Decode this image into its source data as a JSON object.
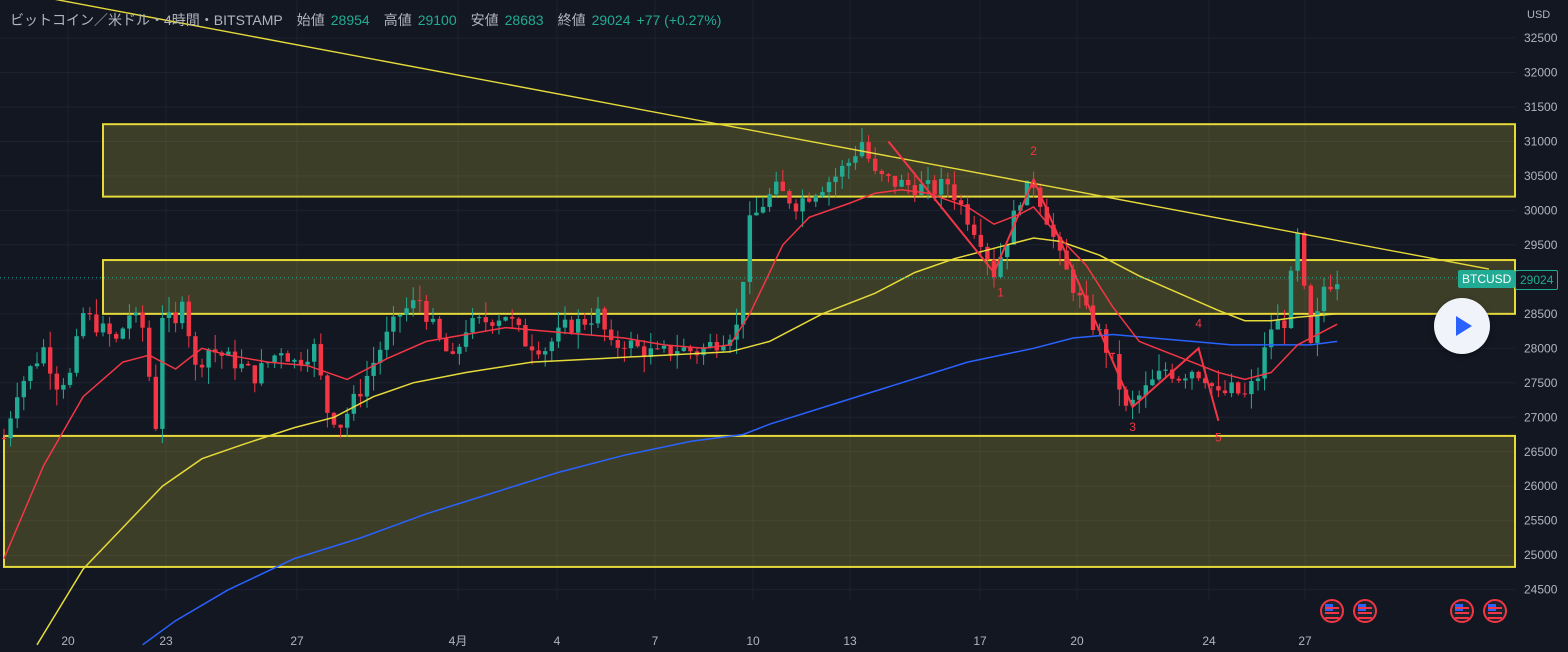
{
  "header": {
    "symbol": "ビットコイン／米ドル・4時間・BITSTAMP",
    "open_label": "始値",
    "open": "28954",
    "high_label": "高値",
    "high": "29100",
    "low_label": "安値",
    "low": "28683",
    "close_label": "終値",
    "close": "29024",
    "change": "+77 (+0.27%)"
  },
  "price_axis": {
    "currency": "USD",
    "ticks": [
      "32500",
      "32000",
      "31500",
      "31000",
      "30500",
      "30000",
      "29500",
      "29000",
      "28500",
      "28000",
      "27500",
      "27000",
      "26500",
      "26000",
      "25500",
      "25000",
      "24500"
    ]
  },
  "time_axis": {
    "ticks": [
      "20",
      "23",
      "27",
      "4月",
      "4",
      "7",
      "10",
      "13",
      "17",
      "20",
      "24",
      "27"
    ]
  },
  "last_price": {
    "symbol": "BTCUSD",
    "value": "29024"
  },
  "colors": {
    "up": "#22ab94",
    "down": "#f23645",
    "zone": "#e6da3a",
    "ma_fast": "#f23645",
    "ma_mid": "#e6da3a",
    "ma_slow": "#2962ff",
    "trend": "#e6da3a"
  },
  "chart_data": {
    "type": "candlestick",
    "title": "ビットコイン／米ドル・4時間・BITSTAMP",
    "ylim": [
      24200,
      32800
    ],
    "x_ticks": [
      "20",
      "23",
      "27",
      "4月",
      "4",
      "7",
      "10",
      "13",
      "17",
      "20",
      "24",
      "27"
    ],
    "price_ticks": [
      32500,
      32000,
      31500,
      31000,
      30500,
      30000,
      29500,
      29000,
      28500,
      28000,
      27500,
      27000,
      26500,
      26000,
      25500,
      25000,
      24500
    ],
    "last_price": 29024,
    "close_path_anchors": [
      [
        0,
        26700
      ],
      [
        2,
        27400
      ],
      [
        6,
        28000
      ],
      [
        8,
        27500
      ],
      [
        10,
        27600
      ],
      [
        12,
        28500
      ],
      [
        17,
        28100
      ],
      [
        19,
        28500
      ],
      [
        21,
        28300
      ],
      [
        23,
        26900
      ],
      [
        24,
        28500
      ],
      [
        26,
        28300
      ],
      [
        27,
        28800
      ],
      [
        29,
        27700
      ],
      [
        31,
        28000
      ],
      [
        35,
        27800
      ],
      [
        38,
        27600
      ],
      [
        42,
        28000
      ],
      [
        44,
        27800
      ],
      [
        47,
        28000
      ],
      [
        49,
        27100
      ],
      [
        51,
        26900
      ],
      [
        54,
        27400
      ],
      [
        57,
        28000
      ],
      [
        60,
        28500
      ],
      [
        63,
        28700
      ],
      [
        66,
        28100
      ],
      [
        68,
        27800
      ],
      [
        70,
        28300
      ],
      [
        73,
        28400
      ],
      [
        76,
        28500
      ],
      [
        79,
        28100
      ],
      [
        82,
        28000
      ],
      [
        85,
        28300
      ],
      [
        88,
        28400
      ],
      [
        90,
        28500
      ],
      [
        92,
        28000
      ],
      [
        94,
        28100
      ],
      [
        96,
        28000
      ],
      [
        99,
        27900
      ],
      [
        102,
        28000
      ],
      [
        105,
        27950
      ],
      [
        108,
        28100
      ],
      [
        111,
        28300
      ],
      [
        113,
        29800
      ],
      [
        115,
        30100
      ],
      [
        117,
        30300
      ],
      [
        120,
        30100
      ],
      [
        123,
        30300
      ],
      [
        126,
        30500
      ],
      [
        128,
        30700
      ],
      [
        130,
        31000
      ],
      [
        132,
        30500
      ],
      [
        135,
        30400
      ],
      [
        138,
        30350
      ],
      [
        141,
        30300
      ],
      [
        143,
        30400
      ],
      [
        146,
        29900
      ],
      [
        148,
        29600
      ],
      [
        150,
        29100
      ],
      [
        152,
        29600
      ],
      [
        154,
        30200
      ],
      [
        156,
        30400
      ],
      [
        158,
        29900
      ],
      [
        160,
        29300
      ],
      [
        162,
        28900
      ],
      [
        164,
        28500
      ],
      [
        166,
        28200
      ],
      [
        168,
        27800
      ],
      [
        170,
        27100
      ],
      [
        172,
        27300
      ],
      [
        174,
        27500
      ],
      [
        176,
        27700
      ],
      [
        178,
        27600
      ],
      [
        180,
        27700
      ],
      [
        182,
        27600
      ],
      [
        184,
        27300
      ],
      [
        186,
        27400
      ],
      [
        188,
        27300
      ],
      [
        190,
        27600
      ],
      [
        192,
        28300
      ],
      [
        194,
        28400
      ],
      [
        196,
        29600
      ],
      [
        198,
        28000
      ],
      [
        200,
        28900
      ],
      [
        202,
        29024
      ]
    ],
    "zones": [
      {
        "from": 30200,
        "to": 31250,
        "x_from": 15,
        "x_to": 225
      },
      {
        "from": 28500,
        "to": 29280,
        "x_from": 15,
        "x_to": 225
      },
      {
        "from": 24830,
        "to": 26730,
        "x_from": 0,
        "x_to": 225
      }
    ],
    "trendline": [
      [
        0,
        33200
      ],
      [
        225,
        29150
      ]
    ],
    "elliott_wave": {
      "points": [
        [
          134,
          31000
        ],
        [
          150,
          29100
        ],
        [
          156,
          30450
        ],
        [
          171,
          27150
        ],
        [
          181,
          28000
        ],
        [
          184,
          26950
        ]
      ],
      "labels": [
        {
          "text": "1",
          "at": [
            151,
            28750
          ]
        },
        {
          "text": "2",
          "at": [
            156,
            30800
          ]
        },
        {
          "text": "3",
          "at": [
            171,
            26800
          ]
        },
        {
          "text": "4",
          "at": [
            181,
            28300
          ]
        },
        {
          "text": "5",
          "at": [
            184,
            26650
          ]
        }
      ]
    },
    "ma_fast": [
      [
        0,
        24950
      ],
      [
        6,
        26300
      ],
      [
        12,
        27300
      ],
      [
        18,
        27800
      ],
      [
        22,
        27900
      ],
      [
        26,
        27700
      ],
      [
        30,
        28000
      ],
      [
        34,
        27900
      ],
      [
        40,
        27800
      ],
      [
        46,
        27750
      ],
      [
        52,
        27550
      ],
      [
        58,
        27850
      ],
      [
        64,
        28100
      ],
      [
        70,
        28200
      ],
      [
        76,
        28300
      ],
      [
        82,
        28250
      ],
      [
        88,
        28200
      ],
      [
        94,
        28150
      ],
      [
        100,
        28050
      ],
      [
        106,
        28000
      ],
      [
        110,
        28050
      ],
      [
        113,
        28500
      ],
      [
        118,
        29500
      ],
      [
        122,
        29900
      ],
      [
        128,
        30100
      ],
      [
        132,
        30250
      ],
      [
        136,
        30300
      ],
      [
        140,
        30250
      ],
      [
        146,
        30050
      ],
      [
        150,
        29800
      ],
      [
        154,
        29950
      ],
      [
        156,
        30050
      ],
      [
        160,
        29600
      ],
      [
        164,
        29200
      ],
      [
        168,
        28600
      ],
      [
        172,
        28100
      ],
      [
        176,
        27950
      ],
      [
        180,
        27800
      ],
      [
        184,
        27650
      ],
      [
        188,
        27550
      ],
      [
        192,
        27650
      ],
      [
        196,
        28050
      ],
      [
        200,
        28250
      ],
      [
        202,
        28350
      ]
    ],
    "ma_mid": [
      [
        5,
        23700
      ],
      [
        12,
        24800
      ],
      [
        20,
        25600
      ],
      [
        24,
        26000
      ],
      [
        30,
        26400
      ],
      [
        36,
        26600
      ],
      [
        44,
        26850
      ],
      [
        50,
        27000
      ],
      [
        56,
        27300
      ],
      [
        62,
        27500
      ],
      [
        70,
        27650
      ],
      [
        80,
        27800
      ],
      [
        90,
        27850
      ],
      [
        100,
        27900
      ],
      [
        110,
        27950
      ],
      [
        116,
        28100
      ],
      [
        124,
        28500
      ],
      [
        132,
        28800
      ],
      [
        138,
        29100
      ],
      [
        144,
        29300
      ],
      [
        150,
        29450
      ],
      [
        156,
        29600
      ],
      [
        160,
        29550
      ],
      [
        166,
        29350
      ],
      [
        172,
        29050
      ],
      [
        178,
        28800
      ],
      [
        184,
        28550
      ],
      [
        188,
        28400
      ],
      [
        192,
        28400
      ],
      [
        196,
        28450
      ],
      [
        202,
        28500
      ]
    ],
    "ma_slow": [
      [
        21,
        23700
      ],
      [
        26,
        24050
      ],
      [
        34,
        24500
      ],
      [
        44,
        24950
      ],
      [
        54,
        25250
      ],
      [
        64,
        25600
      ],
      [
        74,
        25900
      ],
      [
        84,
        26200
      ],
      [
        94,
        26450
      ],
      [
        104,
        26650
      ],
      [
        112,
        26750
      ],
      [
        116,
        26900
      ],
      [
        126,
        27200
      ],
      [
        136,
        27500
      ],
      [
        146,
        27800
      ],
      [
        156,
        28000
      ],
      [
        162,
        28150
      ],
      [
        168,
        28200
      ],
      [
        174,
        28150
      ],
      [
        180,
        28100
      ],
      [
        186,
        28050
      ],
      [
        192,
        28050
      ],
      [
        198,
        28050
      ],
      [
        202,
        28100
      ]
    ]
  }
}
